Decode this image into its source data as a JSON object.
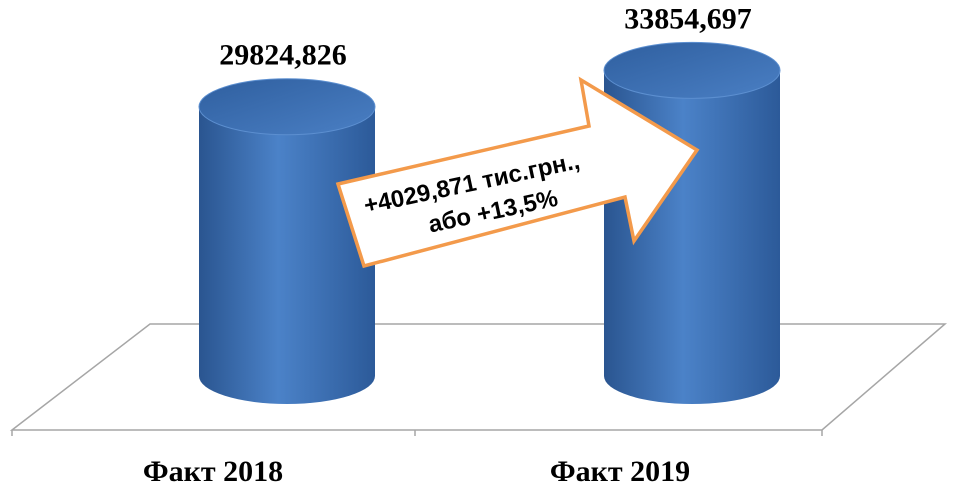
{
  "chart_data": {
    "type": "bar",
    "categories": [
      "Факт 2018",
      "Факт 2019"
    ],
    "values": [
      29824.826,
      33854.697
    ],
    "value_labels": [
      "29824,826",
      "33854,697"
    ],
    "ylim": [
      0,
      35000
    ],
    "grid": false,
    "annotation": {
      "line1": "+4029,871 тис.грн.,",
      "line2": "або +13,5%"
    }
  },
  "colors": {
    "bar_fill": "#3a70b9",
    "bar_top": "#4f82c6",
    "arrow_stroke": "#f39a4b",
    "floor_stroke": "#a6a6a6"
  }
}
